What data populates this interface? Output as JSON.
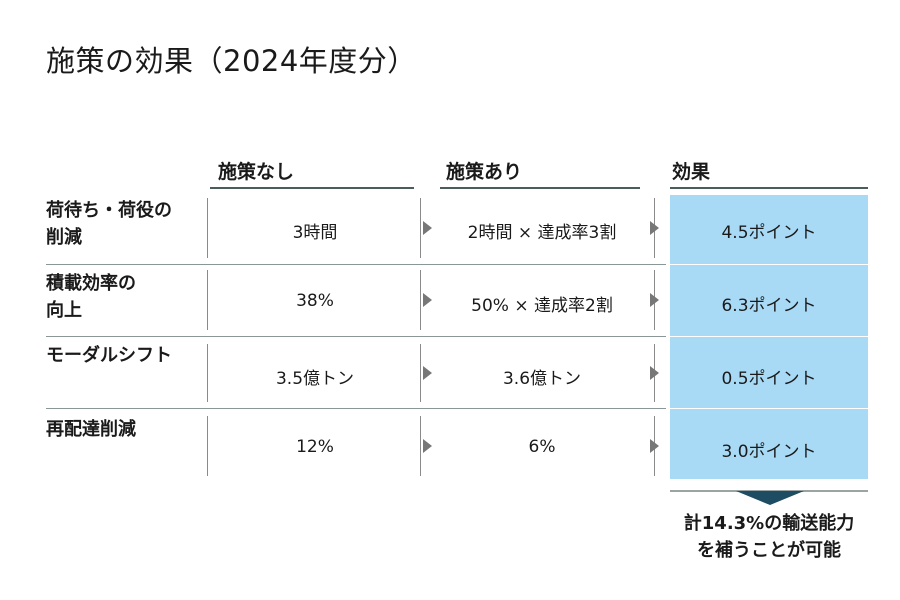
{
  "title": "施策の効果（2024年度分）",
  "columns": {
    "before": "施策なし",
    "after": "施策あり",
    "effect": "効果"
  },
  "rows": [
    {
      "label_line1": "荷待ち・荷役の",
      "label_line2": "削減",
      "before": "3時間",
      "after": "2時間 × 達成率3割",
      "effect": "4.5ポイント"
    },
    {
      "label_line1": "積載効率の",
      "label_line2": "向上",
      "before": "38%",
      "after": "50% × 達成率2割",
      "effect": "6.3ポイント"
    },
    {
      "label_line1": "モーダルシフト",
      "label_line2": "",
      "before": "3.5億トン",
      "after": "3.6億トン",
      "effect": "0.5ポイント"
    },
    {
      "label_line1": "再配達削減",
      "label_line2": "",
      "before": "12%",
      "after": "6%",
      "effect": "3.0ポイント"
    }
  ],
  "conclusion": {
    "line1": "計14.3%の輸送能力",
    "line2": "を補うことが可能"
  },
  "colors": {
    "effect_fill": "#a8d9f5",
    "arrow_down": "#1e4d63",
    "header_rule": "#4a5d5c"
  }
}
